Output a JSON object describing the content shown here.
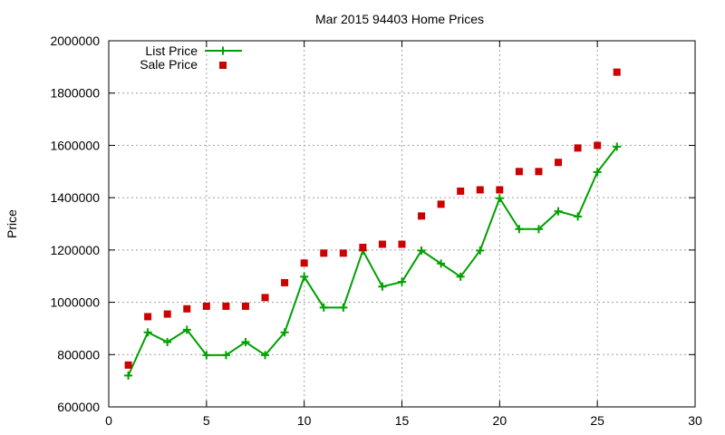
{
  "chart_data": {
    "type": "line",
    "title": "Mar 2015 94403 Home Prices",
    "xlabel": "",
    "ylabel": "Price",
    "xlim": [
      0,
      30
    ],
    "ylim": [
      600000,
      2000000
    ],
    "xticks": [
      0,
      5,
      10,
      15,
      20,
      25,
      30
    ],
    "yticks": [
      600000,
      800000,
      1000000,
      1200000,
      1400000,
      1600000,
      1800000,
      2000000
    ],
    "x_tick_labels": [
      "0",
      "5",
      "10",
      "15",
      "20",
      "25",
      "30"
    ],
    "y_tick_labels": [
      "600000",
      "800000",
      "1000000",
      "1200000",
      "1400000",
      "1600000",
      "1800000",
      "2000000"
    ],
    "grid": true,
    "legend_position": "top-left",
    "series": [
      {
        "name": "List Price",
        "style": "line+cross",
        "color": "#00a000",
        "x": [
          1,
          2,
          3,
          4,
          5,
          6,
          7,
          8,
          9,
          10,
          11,
          12,
          13,
          14,
          15,
          16,
          17,
          18,
          19,
          20,
          21,
          22,
          23,
          24,
          25,
          26
        ],
        "values": [
          720000,
          885000,
          848000,
          895000,
          798000,
          798000,
          848000,
          798000,
          885000,
          1098000,
          980000,
          980000,
          1198000,
          1060000,
          1078000,
          1198000,
          1148000,
          1098000,
          1198000,
          1398000,
          1280000,
          1280000,
          1348000,
          1328000,
          1498000,
          1595000
        ]
      },
      {
        "name": "Sale Price",
        "style": "square",
        "color": "#cc0000",
        "x": [
          1,
          2,
          3,
          4,
          5,
          6,
          7,
          8,
          9,
          10,
          11,
          12,
          13,
          14,
          15,
          16,
          17,
          18,
          19,
          20,
          21,
          22,
          23,
          24,
          25,
          26
        ],
        "values": [
          760000,
          945000,
          955000,
          975000,
          985000,
          985000,
          985000,
          1018000,
          1075000,
          1150000,
          1188000,
          1188000,
          1210000,
          1222000,
          1222000,
          1330000,
          1375000,
          1425000,
          1430000,
          1430000,
          1500000,
          1500000,
          1535000,
          1590000,
          1600000,
          1880000
        ]
      }
    ]
  }
}
